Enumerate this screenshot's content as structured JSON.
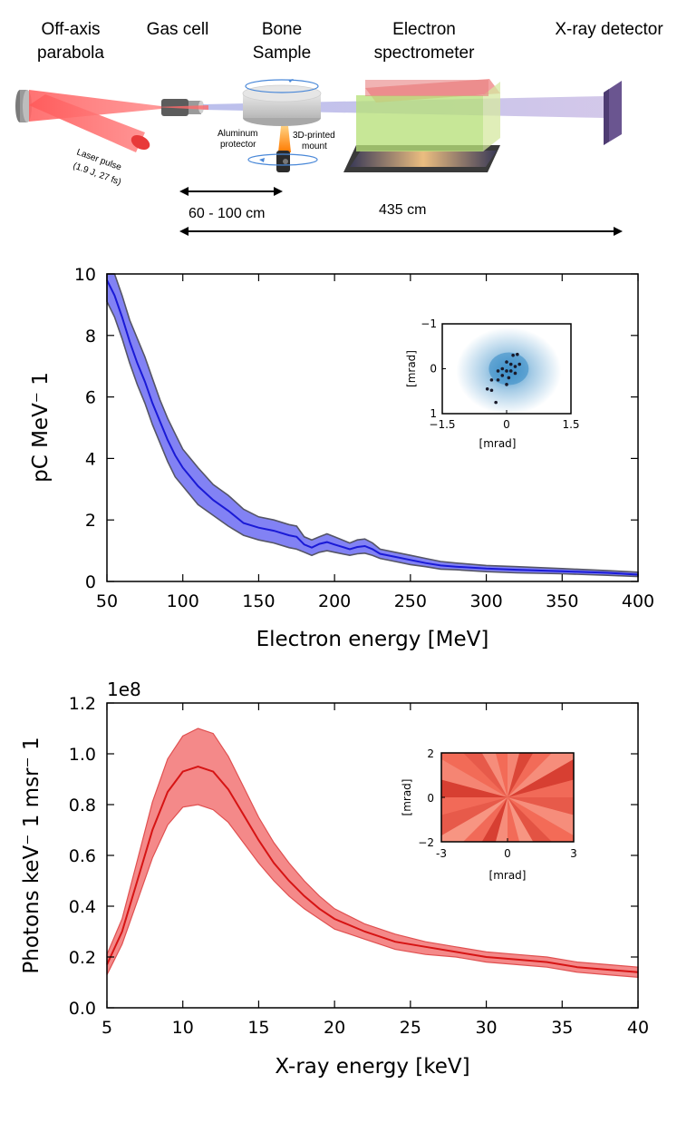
{
  "diagram": {
    "labels": {
      "parabola_1": "Off-axis",
      "parabola_2": "parabola",
      "gas_cell": "Gas cell",
      "bone_1": "Bone",
      "bone_2": "Sample",
      "spectrometer_1": "Electron",
      "spectrometer_2": "spectrometer",
      "detector": "X-ray detector",
      "laser_1": "Laser pulse",
      "laser_2": "(1.9 J, 27 fs)",
      "alu_1": "Aluminum",
      "alu_2": "protector",
      "mount_1": "3D-printed",
      "mount_2": "mount",
      "distance_1": "60 - 100 cm",
      "distance_2": "435 cm"
    },
    "colors": {
      "laser": "#ff4a4a",
      "detector": "#6a5590",
      "spectrometer_front": "#b7e07a",
      "spectrometer_top": "#f08a8a",
      "beam": "#b8b5e0"
    }
  },
  "chart_data": [
    {
      "type": "area",
      "name": "electron-spectrum",
      "xlabel": "Electron energy [MeV]",
      "ylabel": "pC MeV⁻ 1",
      "xlim": [
        50,
        400
      ],
      "ylim": [
        0,
        10
      ],
      "xticks": [
        50,
        100,
        150,
        200,
        250,
        300,
        350,
        400
      ],
      "yticks": [
        0,
        2,
        4,
        6,
        8,
        10
      ],
      "x": [
        50,
        55,
        60,
        65,
        70,
        75,
        80,
        85,
        90,
        95,
        100,
        110,
        120,
        130,
        140,
        150,
        160,
        170,
        175,
        180,
        185,
        190,
        195,
        200,
        210,
        215,
        220,
        225,
        230,
        240,
        250,
        260,
        270,
        280,
        300,
        320,
        350,
        380,
        400
      ],
      "mean": [
        9.8,
        9.3,
        8.6,
        7.8,
        7.1,
        6.5,
        5.8,
        5.2,
        4.6,
        4.1,
        3.7,
        3.1,
        2.65,
        2.3,
        1.9,
        1.75,
        1.65,
        1.5,
        1.45,
        1.2,
        1.1,
        1.22,
        1.28,
        1.2,
        1.05,
        1.12,
        1.15,
        1.05,
        0.9,
        0.8,
        0.7,
        0.6,
        0.52,
        0.48,
        0.42,
        0.38,
        0.33,
        0.28,
        0.22
      ],
      "lower": [
        9.1,
        8.6,
        7.9,
        7.1,
        6.4,
        5.8,
        5.1,
        4.5,
        3.9,
        3.4,
        3.1,
        2.5,
        2.15,
        1.8,
        1.5,
        1.35,
        1.25,
        1.1,
        1.05,
        0.95,
        0.85,
        0.95,
        1.0,
        0.95,
        0.85,
        0.9,
        0.92,
        0.85,
        0.75,
        0.65,
        0.55,
        0.48,
        0.4,
        0.38,
        0.32,
        0.28,
        0.25,
        0.2,
        0.16
      ],
      "upper": [
        10.2,
        10.0,
        9.3,
        8.5,
        7.9,
        7.3,
        6.6,
        5.9,
        5.3,
        4.8,
        4.3,
        3.7,
        3.15,
        2.8,
        2.35,
        2.1,
        2.0,
        1.85,
        1.8,
        1.45,
        1.35,
        1.45,
        1.55,
        1.45,
        1.25,
        1.35,
        1.38,
        1.25,
        1.05,
        0.95,
        0.85,
        0.75,
        0.65,
        0.6,
        0.52,
        0.48,
        0.42,
        0.35,
        0.3
      ],
      "line_color": "#1a1ad6",
      "fill_color": "#5858f0",
      "edge_color": "#555566",
      "inset": {
        "xlabel": "[mrad]",
        "ylabel": "[mrad]",
        "xticks": [
          -1.5,
          0,
          1.5
        ],
        "xtick_labels": [
          "−1.5",
          "0",
          "1.5"
        ],
        "yticks": [
          -1,
          0,
          1
        ],
        "ytick_labels": [
          "−1",
          "0",
          "1"
        ],
        "xlim": [
          -1.5,
          1.5
        ],
        "ylim": [
          -1,
          1
        ],
        "points": [
          [
            0.15,
            -0.3
          ],
          [
            0.25,
            -0.32
          ],
          [
            0.0,
            -0.15
          ],
          [
            0.1,
            -0.1
          ],
          [
            0.2,
            -0.05
          ],
          [
            0.3,
            -0.1
          ],
          [
            -0.1,
            0.0
          ],
          [
            0.0,
            0.05
          ],
          [
            0.1,
            0.05
          ],
          [
            0.2,
            0.1
          ],
          [
            -0.2,
            0.05
          ],
          [
            -0.1,
            0.15
          ],
          [
            0.05,
            0.2
          ],
          [
            -0.35,
            0.25
          ],
          [
            0.0,
            0.35
          ],
          [
            -0.2,
            0.25
          ],
          [
            -0.45,
            0.45
          ],
          [
            -0.35,
            0.48
          ],
          [
            -0.25,
            0.75
          ]
        ],
        "colors": {
          "cloud": "#3a8ec8",
          "points": "#1a1a2a"
        }
      }
    },
    {
      "type": "area",
      "name": "xray-spectrum",
      "xlabel": "X-ray energy [keV]",
      "ylabel": "Photons keV⁻ 1 msr⁻ 1",
      "scale_label": "1e8",
      "xlim": [
        5,
        40
      ],
      "ylim": [
        0,
        1.2
      ],
      "xticks": [
        5,
        10,
        15,
        20,
        25,
        30,
        35,
        40
      ],
      "yticks": [
        0.0,
        0.2,
        0.4,
        0.6,
        0.8,
        1.0,
        1.2
      ],
      "ytick_labels": [
        "0.0",
        "0.2",
        "0.4",
        "0.6",
        "0.8",
        "1.0",
        "1.2"
      ],
      "x": [
        5,
        6,
        7,
        8,
        9,
        10,
        11,
        12,
        13,
        14,
        15,
        16,
        17,
        18,
        19,
        20,
        22,
        24,
        26,
        28,
        30,
        32,
        34,
        36,
        38,
        40
      ],
      "mean": [
        0.17,
        0.3,
        0.5,
        0.7,
        0.85,
        0.93,
        0.95,
        0.93,
        0.86,
        0.76,
        0.66,
        0.57,
        0.5,
        0.44,
        0.39,
        0.35,
        0.3,
        0.26,
        0.24,
        0.22,
        0.2,
        0.19,
        0.18,
        0.16,
        0.15,
        0.14
      ],
      "lower": [
        0.13,
        0.25,
        0.42,
        0.59,
        0.72,
        0.79,
        0.8,
        0.78,
        0.73,
        0.65,
        0.57,
        0.5,
        0.44,
        0.39,
        0.35,
        0.31,
        0.27,
        0.23,
        0.21,
        0.2,
        0.18,
        0.17,
        0.16,
        0.14,
        0.13,
        0.12
      ],
      "upper": [
        0.21,
        0.35,
        0.58,
        0.81,
        0.98,
        1.07,
        1.1,
        1.08,
        0.99,
        0.87,
        0.75,
        0.65,
        0.57,
        0.5,
        0.44,
        0.39,
        0.33,
        0.29,
        0.26,
        0.24,
        0.22,
        0.21,
        0.2,
        0.18,
        0.17,
        0.16
      ],
      "line_color": "#d61414",
      "fill_color": "#f06262",
      "edge_color": "#e05050",
      "inset": {
        "xlabel": "[mrad]",
        "ylabel": "[mrad]",
        "xticks": [
          -3,
          0,
          3
        ],
        "xtick_labels": [
          "-3",
          "0",
          "3"
        ],
        "yticks": [
          2,
          0,
          -2
        ],
        "ytick_labels": [
          "2",
          "0",
          "−2"
        ],
        "xlim": [
          -3,
          3
        ],
        "ylim": [
          -2,
          2
        ],
        "colors": {
          "base": "#f26b58",
          "dark": "#c8281e",
          "light": "#fbb8a6"
        }
      }
    }
  ]
}
